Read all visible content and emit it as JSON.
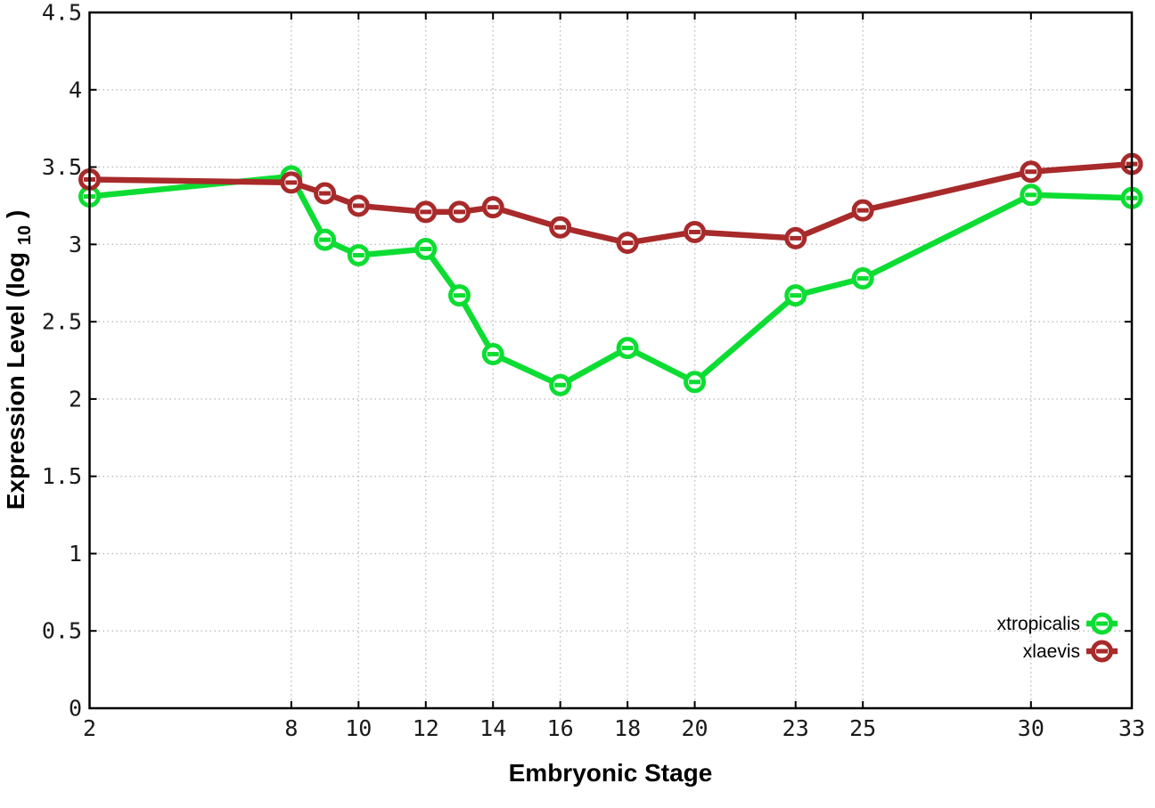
{
  "chart_data": {
    "type": "line",
    "title": "",
    "xlabel": "Embryonic Stage",
    "ylabel": "Expression Level (log10)",
    "ylabel_parts": {
      "prefix": "Expression Level (log",
      "sub": "10",
      "suffix": ")"
    },
    "x": [
      2,
      8,
      9,
      10,
      12,
      13,
      14,
      16,
      18,
      20,
      23,
      25,
      30,
      33
    ],
    "xlim": [
      2,
      33
    ],
    "ylim": [
      0,
      4.5
    ],
    "grid": true,
    "legend_position": "inside-bottom-right",
    "xticks": [
      2,
      8,
      10,
      12,
      14,
      16,
      18,
      20,
      23,
      25,
      30,
      33
    ],
    "xtick_labels": [
      "2",
      "8",
      "10",
      "12",
      "14",
      "16",
      "18",
      "20",
      "23",
      "25",
      "30",
      "33"
    ],
    "yticks": [
      0,
      0.5,
      1,
      1.5,
      2,
      2.5,
      3,
      3.5,
      4,
      4.5
    ],
    "ytick_labels": [
      "0",
      "0.5",
      "1",
      "1.5",
      "2",
      "2.5",
      "3",
      "3.5",
      "4",
      "4.5"
    ],
    "series": [
      {
        "name": "xtropicalis",
        "color": "#0ddd33",
        "values": [
          3.31,
          3.44,
          3.03,
          2.93,
          2.97,
          2.67,
          2.29,
          2.09,
          2.33,
          2.11,
          2.67,
          2.78,
          3.32,
          3.3
        ]
      },
      {
        "name": "xlaevis",
        "color": "#a82a2a",
        "values": [
          3.42,
          3.4,
          3.33,
          3.25,
          3.21,
          3.21,
          3.24,
          3.11,
          3.01,
          3.08,
          3.04,
          3.22,
          3.47,
          3.52
        ]
      }
    ],
    "style": {
      "grid_color": "#bbbbbb",
      "border_color": "#000000",
      "background": "#ffffff",
      "marker": "open-circle-with-dash"
    }
  }
}
